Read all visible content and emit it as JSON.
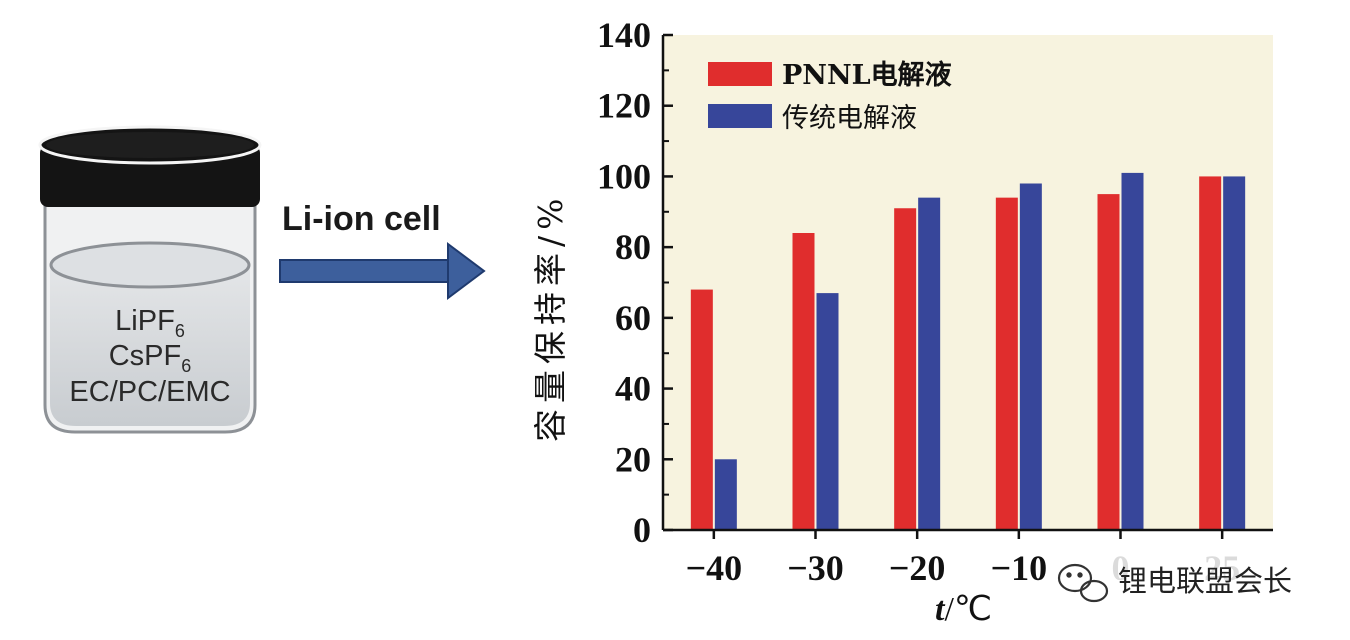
{
  "jar": {
    "salt1": "LiPF",
    "salt1_sub": "6",
    "salt2": "CsPF",
    "salt2_sub": "6",
    "solvent": "EC/PC/EMC"
  },
  "arrow_label": "Li-ion cell",
  "watermark": "锂电联盟会长",
  "colors": {
    "pnnl": "#e02d2d",
    "traditional": "#37469a",
    "plot_bg": "#f7f3df",
    "jar_liquid": "#d3d6d9",
    "jar_lid": "#141414",
    "arrow": "#3d5f9c"
  },
  "chart_data": {
    "type": "bar",
    "categories": [
      "-40",
      "-30",
      "-20",
      "-10",
      "0",
      "25"
    ],
    "series": [
      {
        "name": "PNNL电解液",
        "values": [
          68,
          84,
          91,
          94,
          95,
          100
        ]
      },
      {
        "name": "传统电解液",
        "values": [
          20,
          67,
          94,
          98,
          101,
          100
        ]
      }
    ],
    "ylabel": "容量保持率/%",
    "xlabel_italic": "t",
    "xlabel_unit": "/℃",
    "ylim": [
      0,
      140
    ],
    "yticks": [
      0,
      20,
      40,
      60,
      80,
      100,
      120,
      140
    ],
    "legend_position": "top-left"
  }
}
